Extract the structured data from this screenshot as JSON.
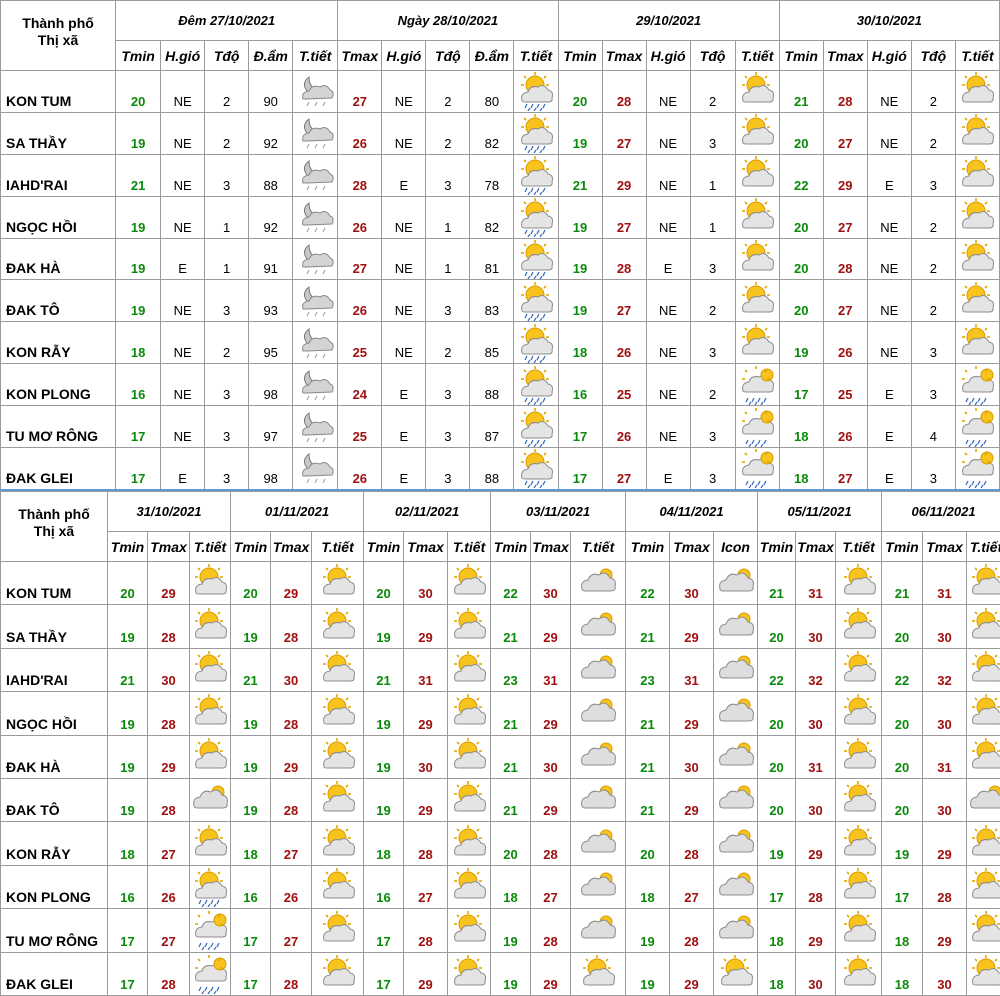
{
  "corner_label": [
    "Thành phố",
    "Thị xã"
  ],
  "table1": {
    "days": [
      {
        "label": "Đêm 27/10/2021",
        "cols": [
          "Tmin",
          "H.gió",
          "Tđộ",
          "Đ.ẩm",
          "T.tiết"
        ]
      },
      {
        "label": "Ngày 28/10/2021",
        "cols": [
          "Tmax",
          "H.gió",
          "Tđộ",
          "Đ.ẩm",
          "T.tiết"
        ]
      },
      {
        "label": "29/10/2021",
        "cols": [
          "Tmin",
          "Tmax",
          "H.gió",
          "Tđộ",
          "T.tiết"
        ]
      },
      {
        "label": "30/10/2021",
        "cols": [
          "Tmin",
          "Tmax",
          "H.gió",
          "Tđộ",
          "T.tiết"
        ]
      }
    ],
    "rows": [
      {
        "city": "KON TUM",
        "d1": [
          "20",
          "NE",
          "2",
          "90"
        ],
        "d2": [
          "27",
          "NE",
          "2",
          "80"
        ],
        "d3": [
          "20",
          "28",
          "NE",
          "2"
        ],
        "d4": [
          "21",
          "28",
          "NE",
          "2"
        ],
        "icons": [
          "night-cloud-icon",
          "sun-cloud-rain-icon",
          "sun-cloud-icon",
          "sun-cloud-icon"
        ]
      },
      {
        "city": "SA THẦY",
        "d1": [
          "19",
          "NE",
          "2",
          "92"
        ],
        "d2": [
          "26",
          "NE",
          "2",
          "82"
        ],
        "d3": [
          "19",
          "27",
          "NE",
          "3"
        ],
        "d4": [
          "20",
          "27",
          "NE",
          "2"
        ],
        "icons": [
          "night-cloud-icon",
          "sun-cloud-rain-icon",
          "sun-cloud-icon",
          "sun-cloud-icon"
        ]
      },
      {
        "city": "IAHD'RAI",
        "d1": [
          "21",
          "NE",
          "3",
          "88"
        ],
        "d2": [
          "28",
          "E",
          "3",
          "78"
        ],
        "d3": [
          "21",
          "29",
          "NE",
          "1"
        ],
        "d4": [
          "22",
          "29",
          "E",
          "3"
        ],
        "icons": [
          "night-cloud-icon",
          "sun-cloud-rain-icon",
          "sun-cloud-icon",
          "sun-cloud-icon"
        ]
      },
      {
        "city": "NGỌC HỒI",
        "d1": [
          "19",
          "NE",
          "1",
          "92"
        ],
        "d2": [
          "26",
          "NE",
          "1",
          "82"
        ],
        "d3": [
          "19",
          "27",
          "NE",
          "1"
        ],
        "d4": [
          "20",
          "27",
          "NE",
          "2"
        ],
        "icons": [
          "night-cloud-icon",
          "sun-cloud-rain-icon",
          "sun-cloud-icon",
          "sun-cloud-icon"
        ]
      },
      {
        "city": "ĐAK HÀ",
        "d1": [
          "19",
          "E",
          "1",
          "91"
        ],
        "d2": [
          "27",
          "NE",
          "1",
          "81"
        ],
        "d3": [
          "19",
          "28",
          "E",
          "3"
        ],
        "d4": [
          "20",
          "28",
          "NE",
          "2"
        ],
        "icons": [
          "night-cloud-icon",
          "sun-cloud-rain-icon",
          "sun-cloud-icon",
          "sun-cloud-icon"
        ]
      },
      {
        "city": "ĐAK TÔ",
        "d1": [
          "19",
          "NE",
          "3",
          "93"
        ],
        "d2": [
          "26",
          "NE",
          "3",
          "83"
        ],
        "d3": [
          "19",
          "27",
          "NE",
          "2"
        ],
        "d4": [
          "20",
          "27",
          "NE",
          "2"
        ],
        "icons": [
          "night-cloud-icon",
          "sun-cloud-rain-icon",
          "sun-cloud-icon",
          "sun-cloud-icon"
        ]
      },
      {
        "city": "KON RẪY",
        "d1": [
          "18",
          "NE",
          "2",
          "95"
        ],
        "d2": [
          "25",
          "NE",
          "2",
          "85"
        ],
        "d3": [
          "18",
          "26",
          "NE",
          "3"
        ],
        "d4": [
          "19",
          "26",
          "NE",
          "3"
        ],
        "icons": [
          "night-cloud-icon",
          "sun-cloud-rain-icon",
          "sun-cloud-icon",
          "sun-cloud-icon"
        ]
      },
      {
        "city": "KON PLONG",
        "d1": [
          "16",
          "NE",
          "3",
          "98"
        ],
        "d2": [
          "24",
          "E",
          "3",
          "88"
        ],
        "d3": [
          "16",
          "25",
          "NE",
          "2"
        ],
        "d4": [
          "17",
          "25",
          "E",
          "3"
        ],
        "icons": [
          "night-cloud-icon",
          "sun-cloud-rain-icon",
          "cloud-rain-icon",
          "cloud-rain-icon"
        ]
      },
      {
        "city": "TU MƠ RÔNG",
        "d1": [
          "17",
          "NE",
          "3",
          "97"
        ],
        "d2": [
          "25",
          "E",
          "3",
          "87"
        ],
        "d3": [
          "17",
          "26",
          "NE",
          "3"
        ],
        "d4": [
          "18",
          "26",
          "E",
          "4"
        ],
        "icons": [
          "night-cloud-icon",
          "sun-cloud-rain-icon",
          "cloud-rain-icon",
          "cloud-rain-icon"
        ]
      },
      {
        "city": "ĐAK GLEI",
        "d1": [
          "17",
          "E",
          "3",
          "98"
        ],
        "d2": [
          "26",
          "E",
          "3",
          "88"
        ],
        "d3": [
          "17",
          "27",
          "E",
          "3"
        ],
        "d4": [
          "18",
          "27",
          "E",
          "3"
        ],
        "icons": [
          "night-cloud-icon",
          "sun-cloud-rain-icon",
          "cloud-rain-icon",
          "cloud-rain-icon"
        ]
      }
    ]
  },
  "table2": {
    "days": [
      {
        "label": "31/10/2021",
        "cols": [
          "Tmin",
          "Tmax",
          "T.tiết"
        ]
      },
      {
        "label": "01/11/2021",
        "cols": [
          "Tmin",
          "Tmax",
          "T.tiết"
        ]
      },
      {
        "label": "02/11/2021",
        "cols": [
          "Tmin",
          "Tmax",
          "T.tiết"
        ]
      },
      {
        "label": "03/11/2021",
        "cols": [
          "Tmin",
          "Tmax",
          "T.tiết"
        ]
      },
      {
        "label": "04/11/2021",
        "cols": [
          "Tmin",
          "Tmax",
          "Icon"
        ]
      },
      {
        "label": "05/11/2021",
        "cols": [
          "Tmin",
          "Tmax",
          "T.tiết"
        ]
      },
      {
        "label": "06/11/2021",
        "cols": [
          "Tmin",
          "Tmax",
          "T.tiết"
        ]
      }
    ],
    "rows": [
      {
        "city": "KON TUM",
        "vals": [
          [
            "20",
            "29"
          ],
          [
            "20",
            "29"
          ],
          [
            "20",
            "30"
          ],
          [
            "22",
            "30"
          ],
          [
            "22",
            "30"
          ],
          [
            "21",
            "31"
          ],
          [
            "21",
            "31"
          ]
        ],
        "icons": [
          "sun-cloud-icon",
          "sun-cloud-icon",
          "sun-cloud-icon",
          "cloud-icon",
          "cloud-icon",
          "sun-cloud-icon",
          "sun-cloud-icon"
        ]
      },
      {
        "city": "SA THẦY",
        "vals": [
          [
            "19",
            "28"
          ],
          [
            "19",
            "28"
          ],
          [
            "19",
            "29"
          ],
          [
            "21",
            "29"
          ],
          [
            "21",
            "29"
          ],
          [
            "20",
            "30"
          ],
          [
            "20",
            "30"
          ]
        ],
        "icons": [
          "sun-cloud-icon",
          "sun-cloud-icon",
          "sun-cloud-icon",
          "cloud-icon",
          "cloud-icon",
          "sun-cloud-icon",
          "sun-cloud-icon"
        ]
      },
      {
        "city": "IAHD'RAI",
        "vals": [
          [
            "21",
            "30"
          ],
          [
            "21",
            "30"
          ],
          [
            "21",
            "31"
          ],
          [
            "23",
            "31"
          ],
          [
            "23",
            "31"
          ],
          [
            "22",
            "32"
          ],
          [
            "22",
            "32"
          ]
        ],
        "icons": [
          "sun-cloud-icon",
          "sun-cloud-icon",
          "sun-cloud-icon",
          "cloud-icon",
          "cloud-icon",
          "sun-cloud-icon",
          "sun-cloud-icon"
        ]
      },
      {
        "city": "NGỌC HỒI",
        "vals": [
          [
            "19",
            "28"
          ],
          [
            "19",
            "28"
          ],
          [
            "19",
            "29"
          ],
          [
            "21",
            "29"
          ],
          [
            "21",
            "29"
          ],
          [
            "20",
            "30"
          ],
          [
            "20",
            "30"
          ]
        ],
        "icons": [
          "sun-cloud-icon",
          "sun-cloud-icon",
          "sun-cloud-icon",
          "cloud-icon",
          "cloud-icon",
          "sun-cloud-icon",
          "sun-cloud-icon"
        ]
      },
      {
        "city": "ĐAK HÀ",
        "vals": [
          [
            "19",
            "29"
          ],
          [
            "19",
            "29"
          ],
          [
            "19",
            "30"
          ],
          [
            "21",
            "30"
          ],
          [
            "21",
            "30"
          ],
          [
            "20",
            "31"
          ],
          [
            "20",
            "31"
          ]
        ],
        "icons": [
          "sun-cloud-icon",
          "sun-cloud-icon",
          "sun-cloud-icon",
          "cloud-icon",
          "cloud-icon",
          "sun-cloud-icon",
          "sun-cloud-icon"
        ]
      },
      {
        "city": "ĐAK TÔ",
        "vals": [
          [
            "19",
            "28"
          ],
          [
            "19",
            "28"
          ],
          [
            "19",
            "29"
          ],
          [
            "21",
            "29"
          ],
          [
            "21",
            "29"
          ],
          [
            "20",
            "30"
          ],
          [
            "20",
            "30"
          ]
        ],
        "icons": [
          "cloud-icon",
          "sun-cloud-icon",
          "sun-cloud-icon",
          "cloud-icon",
          "cloud-icon",
          "sun-cloud-icon",
          "cloud-icon"
        ]
      },
      {
        "city": "KON RẪY",
        "vals": [
          [
            "18",
            "27"
          ],
          [
            "18",
            "27"
          ],
          [
            "18",
            "28"
          ],
          [
            "20",
            "28"
          ],
          [
            "20",
            "28"
          ],
          [
            "19",
            "29"
          ],
          [
            "19",
            "29"
          ]
        ],
        "icons": [
          "sun-cloud-icon",
          "sun-cloud-icon",
          "sun-cloud-icon",
          "cloud-icon",
          "cloud-icon",
          "sun-cloud-icon",
          "sun-cloud-icon"
        ]
      },
      {
        "city": "KON PLONG",
        "vals": [
          [
            "16",
            "26"
          ],
          [
            "16",
            "26"
          ],
          [
            "16",
            "27"
          ],
          [
            "18",
            "27"
          ],
          [
            "18",
            "27"
          ],
          [
            "17",
            "28"
          ],
          [
            "17",
            "28"
          ]
        ],
        "icons": [
          "sun-cloud-rain-icon",
          "sun-cloud-icon",
          "sun-cloud-icon",
          "cloud-icon",
          "cloud-icon",
          "sun-cloud-icon",
          "sun-cloud-icon"
        ]
      },
      {
        "city": "TU MƠ RÔNG",
        "vals": [
          [
            "17",
            "27"
          ],
          [
            "17",
            "27"
          ],
          [
            "17",
            "28"
          ],
          [
            "19",
            "28"
          ],
          [
            "19",
            "28"
          ],
          [
            "18",
            "29"
          ],
          [
            "18",
            "29"
          ]
        ],
        "icons": [
          "cloud-rain-icon",
          "sun-cloud-icon",
          "sun-cloud-icon",
          "cloud-icon",
          "cloud-icon",
          "sun-cloud-icon",
          "sun-cloud-icon"
        ]
      },
      {
        "city": "ĐAK GLEI",
        "vals": [
          [
            "17",
            "28"
          ],
          [
            "17",
            "28"
          ],
          [
            "17",
            "29"
          ],
          [
            "19",
            "29"
          ],
          [
            "19",
            "29"
          ],
          [
            "18",
            "30"
          ],
          [
            "18",
            "30"
          ]
        ],
        "icons": [
          "cloud-rain-icon",
          "sun-cloud-icon",
          "sun-cloud-icon",
          "sun-cloud-icon",
          "sun-cloud-icon",
          "sun-cloud-icon",
          "sun-cloud-icon"
        ]
      }
    ]
  }
}
